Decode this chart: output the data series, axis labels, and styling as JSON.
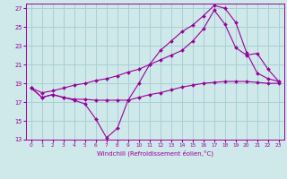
{
  "xlabel": "Windchill (Refroidissement éolien,°C)",
  "bg_color": "#cfe8ea",
  "grid_color": "#a8d0d4",
  "line_color": "#990099",
  "xlim": [
    -0.5,
    23.5
  ],
  "ylim": [
    13,
    27.5
  ],
  "yticks": [
    13,
    15,
    17,
    19,
    21,
    23,
    25,
    27
  ],
  "xticks": [
    0,
    1,
    2,
    3,
    4,
    5,
    6,
    7,
    8,
    9,
    10,
    11,
    12,
    13,
    14,
    15,
    16,
    17,
    18,
    19,
    20,
    21,
    22,
    23
  ],
  "line1_x": [
    0,
    1,
    2,
    3,
    4,
    5,
    6,
    7,
    8,
    9,
    10,
    11,
    12,
    13,
    14,
    15,
    16,
    17,
    18,
    19,
    20,
    21,
    22,
    23
  ],
  "line1_y": [
    18.5,
    17.5,
    17.8,
    17.5,
    17.2,
    16.8,
    15.2,
    13.2,
    14.2,
    17.2,
    19.0,
    21.0,
    22.5,
    23.5,
    24.5,
    25.2,
    26.2,
    27.3,
    27.0,
    25.5,
    22.3,
    20.1,
    19.5,
    19.2
  ],
  "line2_x": [
    0,
    1,
    2,
    3,
    4,
    5,
    6,
    7,
    8,
    9,
    10,
    11,
    12,
    13,
    14,
    15,
    16,
    17,
    18,
    19,
    20,
    21,
    22,
    23
  ],
  "line2_y": [
    18.5,
    17.5,
    17.8,
    17.5,
    17.3,
    17.3,
    17.2,
    17.2,
    17.2,
    17.2,
    17.5,
    17.8,
    18.0,
    18.3,
    18.6,
    18.8,
    19.0,
    19.1,
    19.2,
    19.2,
    19.2,
    19.1,
    19.0,
    19.0
  ],
  "line3_x": [
    0,
    1,
    2,
    3,
    4,
    5,
    6,
    7,
    8,
    9,
    10,
    11,
    12,
    13,
    14,
    15,
    16,
    17,
    18,
    19,
    20,
    21,
    22,
    23
  ],
  "line3_y": [
    18.5,
    18.0,
    18.2,
    18.5,
    18.8,
    19.0,
    19.3,
    19.5,
    19.8,
    20.2,
    20.5,
    21.0,
    21.5,
    22.0,
    22.5,
    23.5,
    24.8,
    26.8,
    25.3,
    22.8,
    22.0,
    22.2,
    20.5,
    19.2
  ]
}
